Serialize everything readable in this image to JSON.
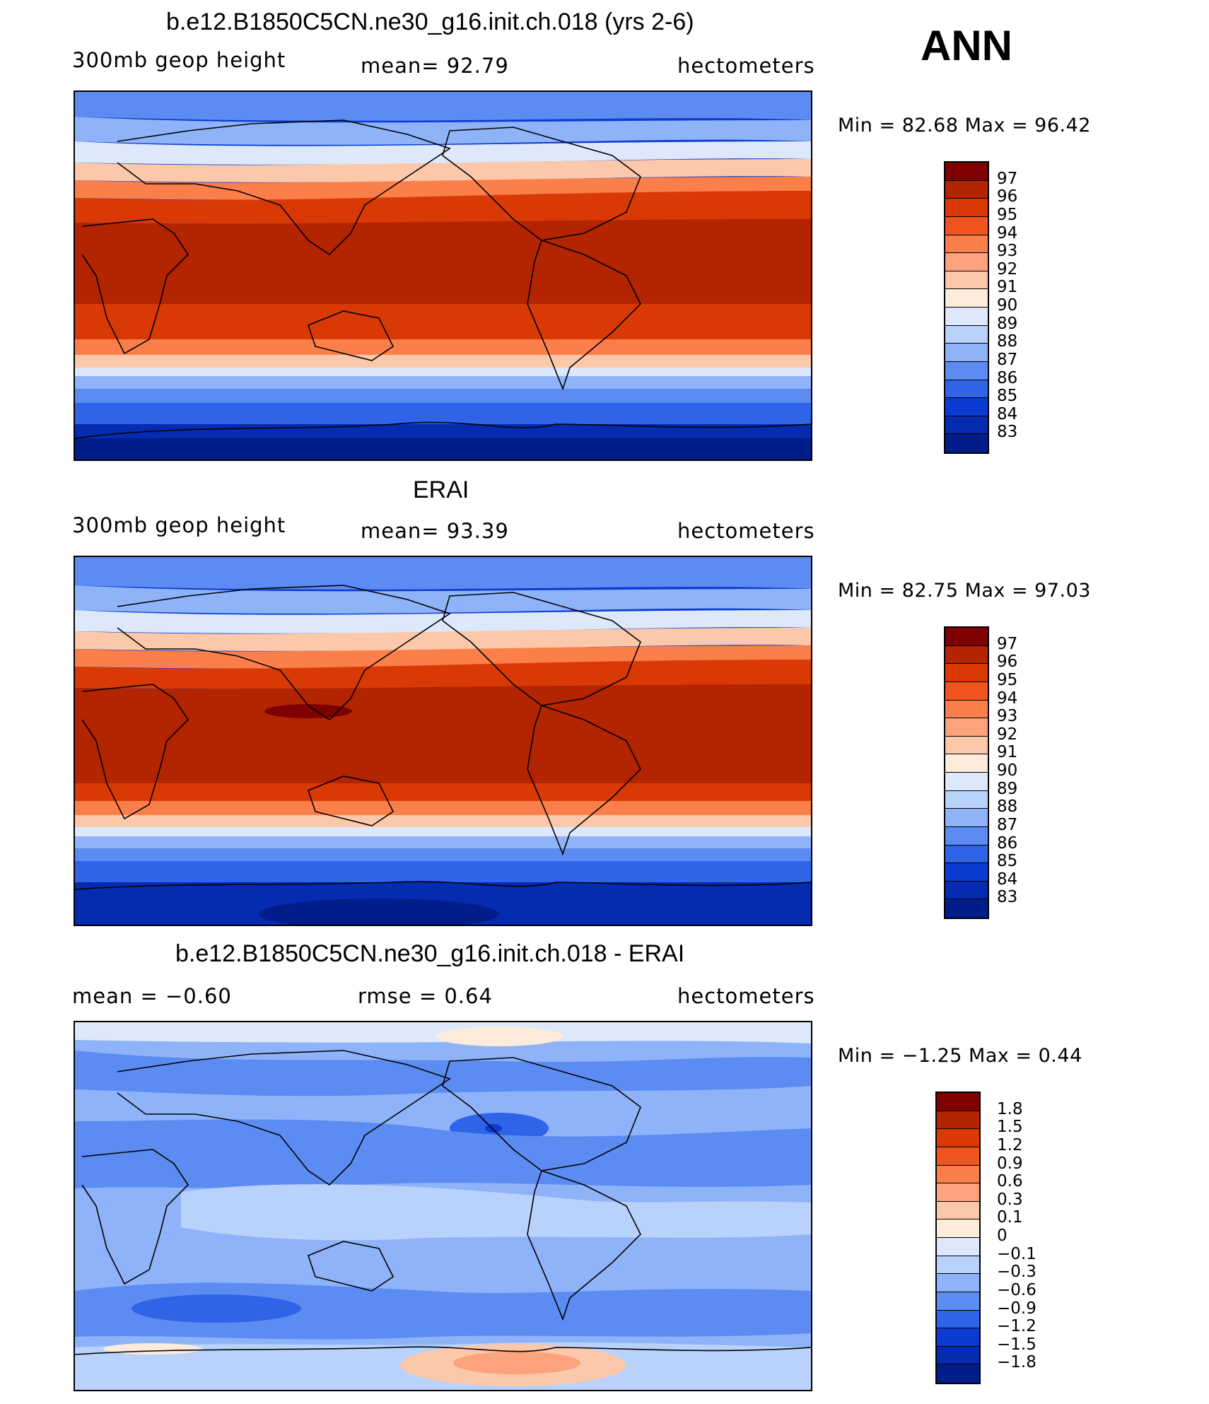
{
  "season": "ANN",
  "panels": [
    {
      "id": "model",
      "title": "b.e12.B1850C5CN.ne30_g16.init.ch.018 (yrs 2-6)",
      "left_label": "300mb geop height",
      "center_label": "mean=  92.79",
      "right_label": "hectometers",
      "stats": "Min =   82.68 Max =   96.42",
      "map": "model-300mb-geopotential-height-map",
      "colorbar": {
        "labels": [
          "97",
          "96",
          "95",
          "94",
          "93",
          "92",
          "91",
          "90",
          "89",
          "88",
          "87",
          "86",
          "85",
          "84",
          "83"
        ],
        "colors": [
          "#7f0000",
          "#b32400",
          "#d93a05",
          "#f05520",
          "#fb7f4a",
          "#fca27c",
          "#fcc8aa",
          "#fdebdc",
          "#dde9fb",
          "#b9d2fb",
          "#8fb3f9",
          "#5c8cf2",
          "#2f63e8",
          "#0c3bd1",
          "#042bb0",
          "#001d8a"
        ]
      }
    },
    {
      "id": "obs",
      "title": "ERAI",
      "left_label": "300mb geop height",
      "center_label": "mean=  93.39",
      "right_label": "hectometers",
      "stats": "Min =   82.75 Max =   97.03",
      "map": "erai-300mb-geopotential-height-map",
      "colorbar": {
        "labels": [
          "97",
          "96",
          "95",
          "94",
          "93",
          "92",
          "91",
          "90",
          "89",
          "88",
          "87",
          "86",
          "85",
          "84",
          "83"
        ],
        "colors": [
          "#7f0000",
          "#b32400",
          "#d93a05",
          "#f05520",
          "#fb7f4a",
          "#fca27c",
          "#fcc8aa",
          "#fdebdc",
          "#dde9fb",
          "#b9d2fb",
          "#8fb3f9",
          "#5c8cf2",
          "#2f63e8",
          "#0c3bd1",
          "#042bb0",
          "#001d8a"
        ]
      }
    },
    {
      "id": "diff",
      "title": "b.e12.B1850C5CN.ne30_g16.init.ch.018 - ERAI",
      "left_label": "mean =   −0.60",
      "center_label": "rmse =    0.64",
      "right_label": "hectometers",
      "stats": "Min =  −1.25 Max =    0.44",
      "map": "difference-map",
      "colorbar": {
        "labels": [
          "1.8",
          "1.5",
          "1.2",
          "0.9",
          "0.6",
          "0.3",
          "0.1",
          "0",
          "−0.1",
          "−0.3",
          "−0.6",
          "−0.9",
          "−1.2",
          "−1.5",
          "−1.8"
        ],
        "colors": [
          "#7f0000",
          "#b32400",
          "#d93a05",
          "#f05520",
          "#fb7f4a",
          "#fca27c",
          "#fcc8aa",
          "#fdebdc",
          "#dde9fb",
          "#b9d2fb",
          "#8fb3f9",
          "#5c8cf2",
          "#2f63e8",
          "#0c3bd1",
          "#042bb0",
          "#001d8a"
        ]
      }
    }
  ]
}
